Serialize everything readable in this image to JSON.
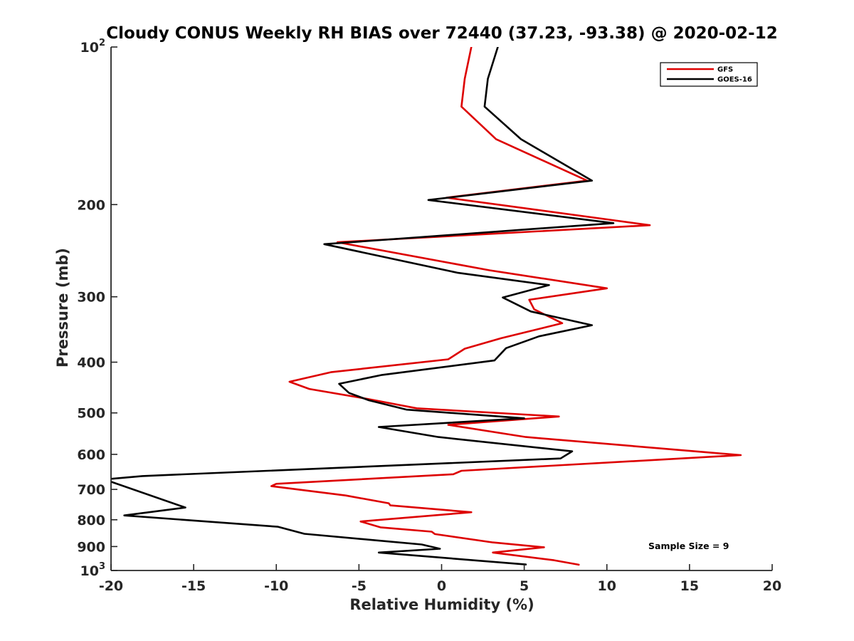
{
  "chart_data": {
    "type": "line",
    "title": "Cloudy CONUS Weekly RH BIAS over 72440 (37.23, -93.38) @ 2020-02-12",
    "xlabel": "Relative Humidity (%)",
    "ylabel": "Pressure (mb)",
    "xlim": [
      -20,
      20
    ],
    "ylim": [
      100,
      1000
    ],
    "y_scale": "log",
    "y_reversed": true,
    "xticks": [
      -20,
      -15,
      -10,
      -5,
      0,
      5,
      10,
      15,
      20
    ],
    "xtick_labels": [
      "-20",
      "-15",
      "-10",
      "-5",
      "0",
      "5",
      "10",
      "15",
      "20"
    ],
    "yticks": [
      100,
      200,
      300,
      400,
      500,
      600,
      700,
      800,
      900,
      1000
    ],
    "ytick_labels": [
      {
        "base": "10",
        "exp": "2"
      },
      {
        "text": "200"
      },
      {
        "text": "300"
      },
      {
        "text": "400"
      },
      {
        "text": "500"
      },
      {
        "text": "600"
      },
      {
        "text": "700"
      },
      {
        "text": "800"
      },
      {
        "text": "900"
      },
      {
        "base": "10",
        "exp": "3"
      }
    ],
    "grid": false,
    "legend_position": "top-right",
    "annotation": "Sample Size = 9",
    "series": [
      {
        "name": "GFS",
        "color": "#dd0000",
        "points": [
          [
            1.8,
            100
          ],
          [
            1.4,
            115
          ],
          [
            1.2,
            130
          ],
          [
            3.3,
            150
          ],
          [
            8.8,
            180
          ],
          [
            0.3,
            194
          ],
          [
            12.6,
            219
          ],
          [
            -6.3,
            236
          ],
          [
            2.9,
            267
          ],
          [
            10.0,
            289
          ],
          [
            5.3,
            304
          ],
          [
            5.6,
            317
          ],
          [
            7.3,
            337
          ],
          [
            3.6,
            360
          ],
          [
            1.4,
            377
          ],
          [
            0.4,
            395
          ],
          [
            -6.7,
            418
          ],
          [
            -9.2,
            436
          ],
          [
            -8.0,
            450
          ],
          [
            -4.5,
            470
          ],
          [
            -1.5,
            490
          ],
          [
            7.1,
            508
          ],
          [
            0.4,
            527
          ],
          [
            5.1,
            556
          ],
          [
            15.6,
            593
          ],
          [
            18.1,
            602
          ],
          [
            1.2,
            645
          ],
          [
            0.7,
            655
          ],
          [
            -10.0,
            683
          ],
          [
            -10.3,
            690
          ],
          [
            -5.8,
            719
          ],
          [
            -3.2,
            744
          ],
          [
            -3.1,
            751
          ],
          [
            1.8,
            774
          ],
          [
            -4.9,
            806
          ],
          [
            -3.7,
            827
          ],
          [
            -0.6,
            843
          ],
          [
            -0.4,
            852
          ],
          [
            3.1,
            884
          ],
          [
            6.2,
            903
          ],
          [
            3.1,
            924
          ],
          [
            6.8,
            956
          ],
          [
            8.3,
            975
          ]
        ]
      },
      {
        "name": "GOES-16",
        "color": "#000000",
        "points": [
          [
            3.4,
            100
          ],
          [
            2.8,
            115
          ],
          [
            2.6,
            130
          ],
          [
            4.8,
            150
          ],
          [
            9.1,
            180
          ],
          [
            -0.8,
            196
          ],
          [
            10.4,
            217
          ],
          [
            -7.1,
            238
          ],
          [
            1.0,
            270
          ],
          [
            6.5,
            285
          ],
          [
            3.7,
            301
          ],
          [
            5.4,
            320
          ],
          [
            9.1,
            340
          ],
          [
            5.9,
            357
          ],
          [
            3.9,
            376
          ],
          [
            3.2,
            397
          ],
          [
            -3.6,
            423
          ],
          [
            -6.2,
            440
          ],
          [
            -5.6,
            458
          ],
          [
            -4.4,
            473
          ],
          [
            -2.1,
            493
          ],
          [
            5.0,
            512
          ],
          [
            -3.8,
            532
          ],
          [
            -0.2,
            556
          ],
          [
            7.9,
            592
          ],
          [
            7.2,
            611
          ],
          [
            -18.1,
            660
          ],
          [
            -20.4,
            670
          ],
          [
            -15.5,
            758
          ],
          [
            -19.2,
            785
          ],
          [
            -9.9,
            825
          ],
          [
            -8.3,
            851
          ],
          [
            -1.2,
            892
          ],
          [
            -0.1,
            909
          ],
          [
            -3.8,
            924
          ],
          [
            5.1,
            974
          ]
        ]
      }
    ]
  }
}
